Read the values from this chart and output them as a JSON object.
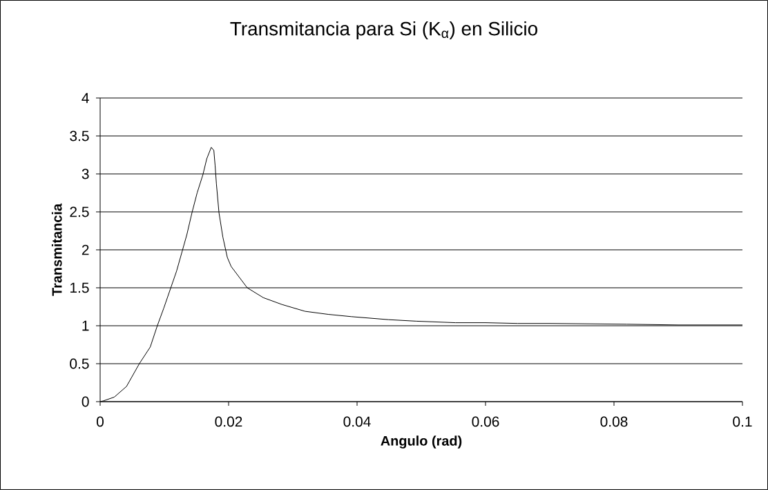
{
  "chart_data": {
    "type": "line",
    "title": "Transmitancia para Si (K$_{α}$) en Silicio",
    "xlabel": "Angulo (rad)",
    "ylabel": "Transmitancia",
    "x": [
      0,
      0.0005,
      0.0022,
      0.0041,
      0.0061,
      0.0078,
      0.0089,
      0.0099,
      0.011,
      0.0119,
      0.0128,
      0.0135,
      0.0143,
      0.0151,
      0.016,
      0.0166,
      0.0173,
      0.0177,
      0.0179,
      0.0181,
      0.0185,
      0.0191,
      0.0198,
      0.0204,
      0.0229,
      0.0254,
      0.0283,
      0.0319,
      0.0355,
      0.0391,
      0.0449,
      0.0492,
      0.0553,
      0.06,
      0.065,
      0.07,
      0.082,
      0.09,
      0.1
    ],
    "series": [
      {
        "color": "#000000",
        "values": [
          0,
          0.01,
          0.06,
          0.2,
          0.5,
          0.72,
          1.0,
          1.23,
          1.5,
          1.72,
          1.99,
          2.2,
          2.49,
          2.75,
          2.99,
          3.2,
          3.35,
          3.31,
          3.11,
          2.87,
          2.49,
          2.17,
          1.9,
          1.78,
          1.5,
          1.37,
          1.28,
          1.19,
          1.15,
          1.12,
          1.08,
          1.06,
          1.04,
          1.04,
          1.03,
          1.03,
          1.02,
          1.01,
          1.01
        ]
      }
    ],
    "xlim": [
      0,
      0.1
    ],
    "xticks": [
      0,
      0.02,
      0.04,
      0.06,
      0.08,
      0.1
    ],
    "ylim": [
      0,
      4
    ],
    "yticks": [
      0,
      0.5,
      1,
      1.5,
      2,
      2.5,
      3,
      3.5,
      4
    ],
    "grid": "y",
    "marker": "none",
    "line_style": "solid"
  }
}
